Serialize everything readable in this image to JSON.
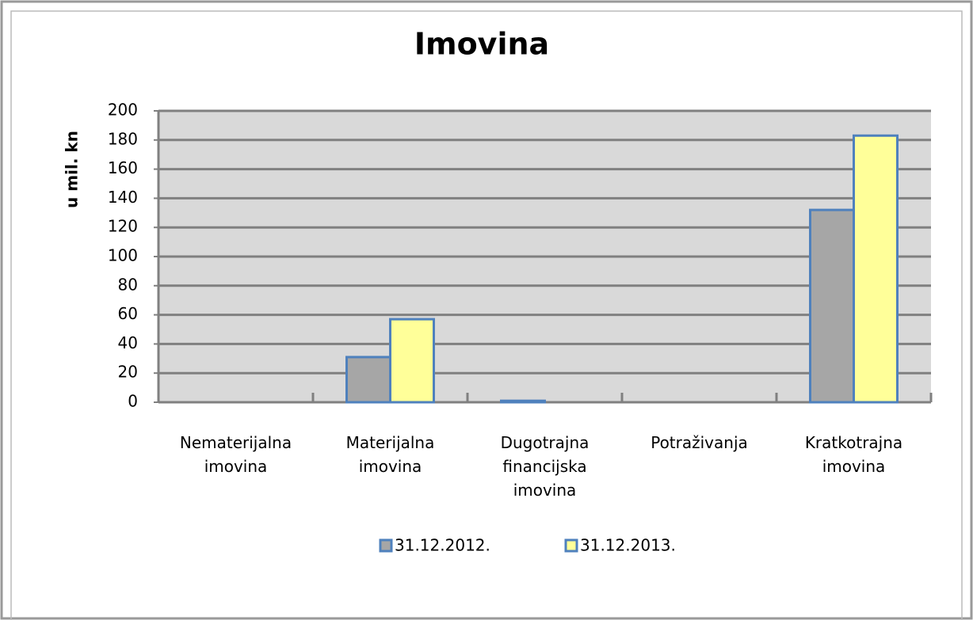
{
  "chart_data": {
    "type": "bar",
    "title": "Imovina",
    "y_label": "u mil. kn",
    "categories": [
      "Nematerijalna imovina",
      "Materijalna imovina",
      "Dugotrajna financijska imovina",
      "Potraživanja",
      "Kratkotrajna imovina"
    ],
    "series": [
      {
        "name": "31.12.2012.",
        "color": "#a6a6a6",
        "values": [
          0,
          31,
          1,
          0,
          132
        ]
      },
      {
        "name": "31.12.2013.",
        "color": "#ffff99",
        "values": [
          0,
          57,
          0,
          0,
          183
        ]
      }
    ],
    "ylim": [
      0,
      200
    ],
    "yticks": [
      0,
      20,
      40,
      60,
      80,
      100,
      120,
      140,
      160,
      180,
      200
    ],
    "grid": true,
    "legend": "bottom"
  }
}
